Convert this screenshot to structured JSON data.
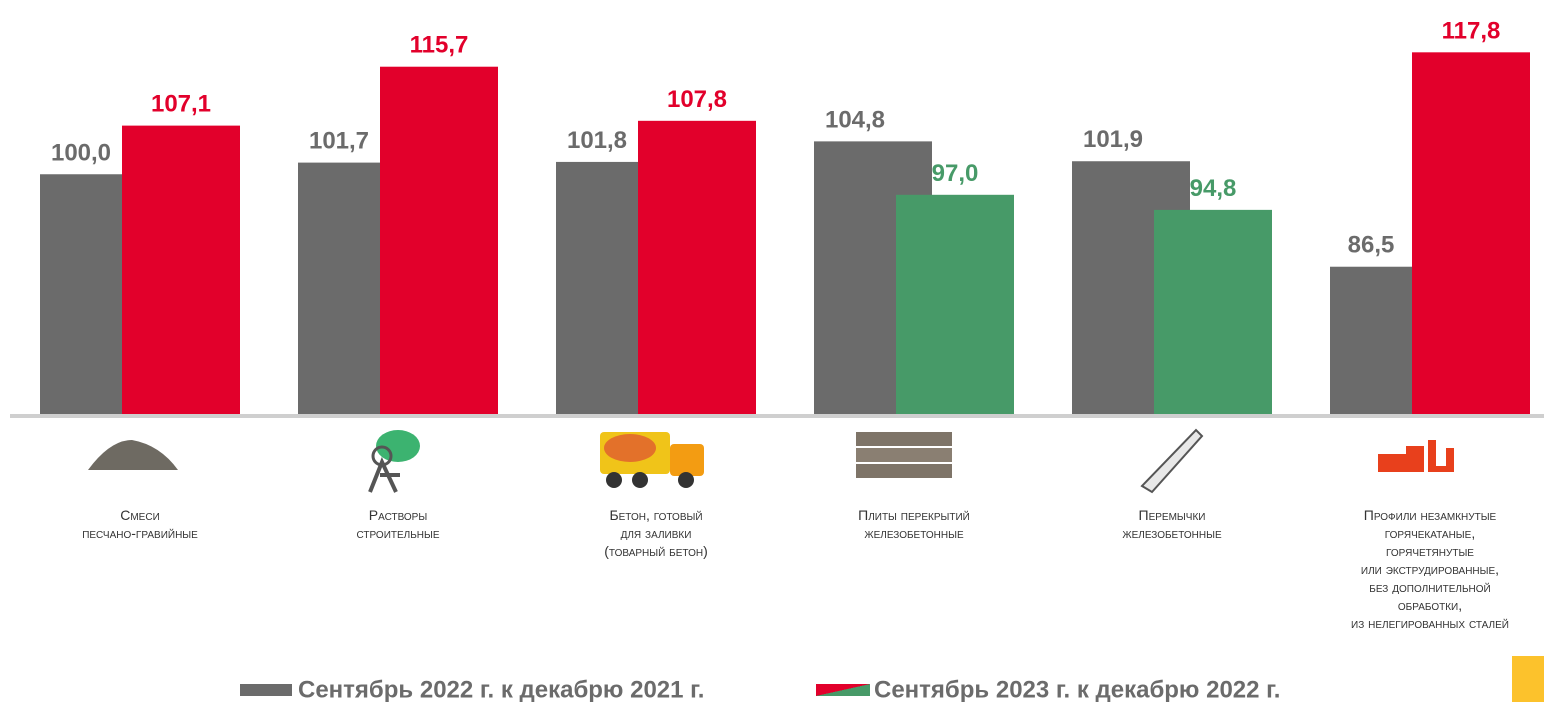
{
  "chart_data": {
    "type": "bar",
    "categories": [
      "Смеси\nпесчано-гравийные",
      "Растворы\nстроительные",
      "Бетон, готовый\nдля заливки\n(товарный бетон)",
      "Плиты перекрытий\nжелезобетонные",
      "Перемычки\nжелезобетонные",
      "Профили незамкнутые\nгорячекатаные,\nгорячетянутые\nили экструдированные,\nбез дополнительной\nобработки,\nиз нелегированных сталей"
    ],
    "series": [
      {
        "name": "Сентябрь 2022 г. к декабрю 2021 г.",
        "color": "#6b6b6b",
        "values": [
          100.0,
          101.7,
          101.8,
          104.8,
          101.9,
          86.5
        ],
        "value_labels": [
          "100,0",
          "101,7",
          "101,8",
          "104,8",
          "101,9",
          "86,5"
        ]
      },
      {
        "name": "Сентябрь 2023 г. к декабрю 2022 г.",
        "colors": [
          "#e2002b",
          "#e2002b",
          "#e2002b",
          "#479a68",
          "#479a68",
          "#e2002b"
        ],
        "values": [
          107.1,
          115.7,
          107.8,
          97.0,
          94.8,
          117.8
        ],
        "value_labels": [
          "107,1",
          "115,7",
          "107,8",
          "97,0",
          "94,8",
          "117,8"
        ]
      }
    ],
    "ylim": [
      65,
      125
    ]
  }
}
